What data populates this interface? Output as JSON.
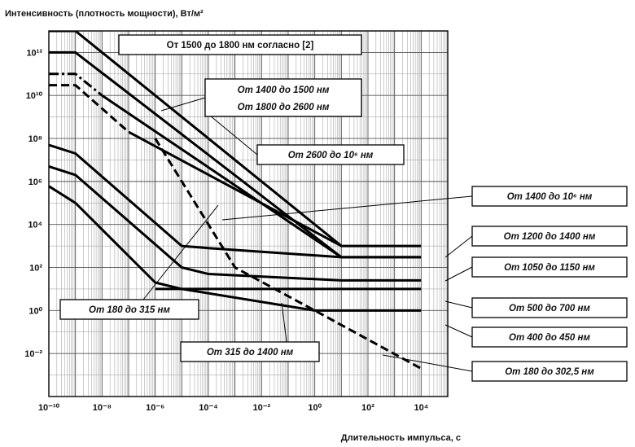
{
  "chart_data": {
    "type": "line",
    "title": "",
    "ylabel": "Интенсивность (плотность мощности), Вт/м²",
    "xlabel": "Длительность импульса, с",
    "x_scale": "log",
    "y_scale": "log",
    "xlim": [
      1e-10,
      100000.0
    ],
    "ylim": [
      0.0001,
      10000000000000.0
    ],
    "grid": true,
    "x_ticks": [
      "10⁻¹⁰",
      "10⁻⁸",
      "10⁻⁶",
      "10⁻⁴",
      "10⁻²",
      "10⁰",
      "10²",
      "10⁴"
    ],
    "y_ticks": [
      "10¹²",
      "10¹⁰",
      "10⁸",
      "10⁶",
      "10⁴",
      "10²",
      "10⁰",
      "10⁻²"
    ],
    "series": [
      {
        "name": "От 1500 до 1800 нм согласно [2]",
        "style": "solid",
        "points": [
          [
            1e-10,
            10000000000000.0
          ],
          [
            1e-09,
            10000000000000.0
          ],
          [
            10,
            1000
          ],
          [
            10000.0,
            1000
          ]
        ]
      },
      {
        "name": "От 1400 до 1500 нм / От 1800 до 2600 нм",
        "style": "solid",
        "points": [
          [
            1e-10,
            1000000000000.0
          ],
          [
            1e-09,
            1000000000000.0
          ],
          [
            10,
            300
          ],
          [
            10000.0,
            300
          ]
        ]
      },
      {
        "name": "От 2600 до 10⁶ нм",
        "style": "dash-dot",
        "points": [
          [
            1e-10,
            100000000000.0
          ],
          [
            1e-09,
            100000000000.0
          ],
          [
            1e-08,
            10000000000.0
          ]
        ]
      },
      {
        "name": "От 2600 до 10⁶ нм",
        "style": "solid",
        "points": [
          [
            1e-08,
            10000000000.0
          ],
          [
            10,
            300
          ]
        ]
      },
      {
        "name": "От 1400 до 10⁶ нм",
        "style": "dashed",
        "points": [
          [
            1e-10,
            30000000000.0
          ],
          [
            1e-09,
            30000000000.0
          ],
          [
            1e-07,
            200000000.0
          ]
        ]
      },
      {
        "name": "От 1400 до 10⁶ нм",
        "style": "solid",
        "points": [
          [
            1e-07,
            200000000.0
          ],
          [
            10,
            1000
          ]
        ]
      },
      {
        "name": "От 1200 до 1400 нм",
        "style": "solid",
        "points": [
          [
            1e-10,
            50000000.0
          ],
          [
            1e-09,
            20000000.0
          ],
          [
            1e-05,
            1000
          ],
          [
            0.0001,
            800
          ],
          [
            10,
            300
          ],
          [
            10000.0,
            300
          ]
        ]
      },
      {
        "name": "От 1050 до 1150 нм",
        "style": "solid",
        "points": [
          [
            1e-10,
            5000000.0
          ],
          [
            1e-09,
            2000000.0
          ],
          [
            1e-05,
            100
          ],
          [
            0.0001,
            50
          ],
          [
            10,
            25
          ],
          [
            10000.0,
            25
          ]
        ]
      },
      {
        "name": "От 400 до 450 нм",
        "style": "solid",
        "points": [
          [
            1e-10,
            600000.0
          ],
          [
            1e-09,
            100000.0
          ],
          [
            1e-06,
            20
          ],
          [
            1e-05,
            10
          ],
          [
            1,
            1
          ],
          [
            10000.0,
            1
          ]
        ]
      },
      {
        "name": "От 500 до 700 нм",
        "style": "solid",
        "points": [
          [
            1e-06,
            10
          ],
          [
            10000.0,
            10
          ]
        ]
      },
      {
        "name": "От 180 до 302,5 нм",
        "style": "dashed",
        "points": [
          [
            1e-06,
            100000000.0
          ],
          [
            0.001,
            100
          ],
          [
            1,
            1
          ],
          [
            10000.0,
            0.002
          ]
        ]
      }
    ],
    "annotations": [
      "От 1500 до 1800 нм согласно [2]",
      "От 1400 до 1500 нм",
      "От 1800 до 2600 нм",
      "От 2600 до 10⁶ нм",
      "От 1400 до 10⁶ нм",
      "От 1200 до 1400 нм",
      "От 1050 до 1150 нм",
      "От 500 до 700 нм",
      "От 400 до 450 нм",
      "От 180 до 302,5 нм",
      "От 180 до 315 нм",
      "От 315 до 1400 нм"
    ]
  }
}
